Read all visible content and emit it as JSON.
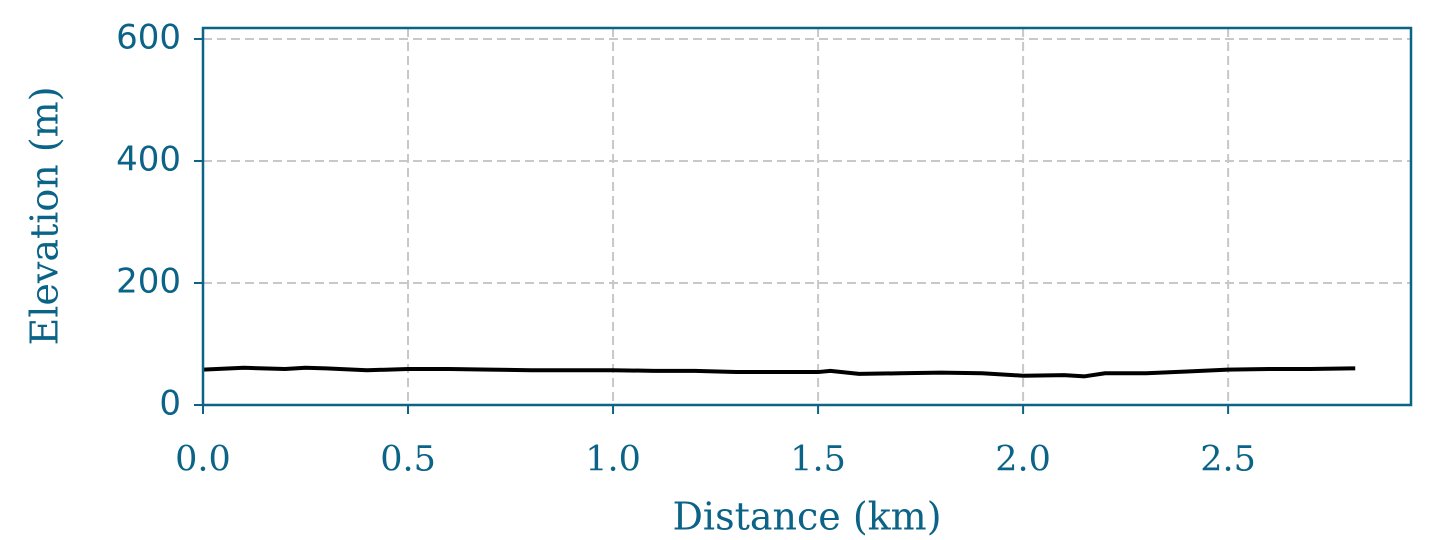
{
  "chart_data": {
    "type": "line",
    "xlabel": "Distance (km)",
    "ylabel": "Elevation (m)",
    "x": [
      0,
      0.1,
      0.2,
      0.25,
      0.3,
      0.4,
      0.5,
      0.6,
      0.7,
      0.8,
      0.9,
      1.0,
      1.1,
      1.2,
      1.3,
      1.4,
      1.5,
      1.53,
      1.6,
      1.7,
      1.8,
      1.9,
      2.0,
      2.1,
      2.15,
      2.2,
      2.3,
      2.4,
      2.5,
      2.6,
      2.7,
      2.8,
      2.81
    ],
    "values": [
      58,
      61,
      59,
      61,
      60,
      57,
      59,
      59,
      58,
      57,
      57,
      57,
      56,
      56,
      54,
      54,
      54,
      56,
      51,
      52,
      53,
      52,
      48,
      49,
      47,
      52,
      52,
      55,
      58,
      59,
      59,
      60,
      60
    ],
    "color": "#000000",
    "xlim": [
      0,
      2.946
    ],
    "ylim": [
      0,
      618
    ],
    "xticks": [
      {
        "value": 0,
        "label": "0.0"
      },
      0.5,
      {
        "value": 1,
        "label": "1.0"
      },
      1.5,
      {
        "value": 2,
        "label": "2.0"
      },
      2.5
    ],
    "yticks": [
      0,
      200,
      400,
      600
    ],
    "grid": true
  }
}
